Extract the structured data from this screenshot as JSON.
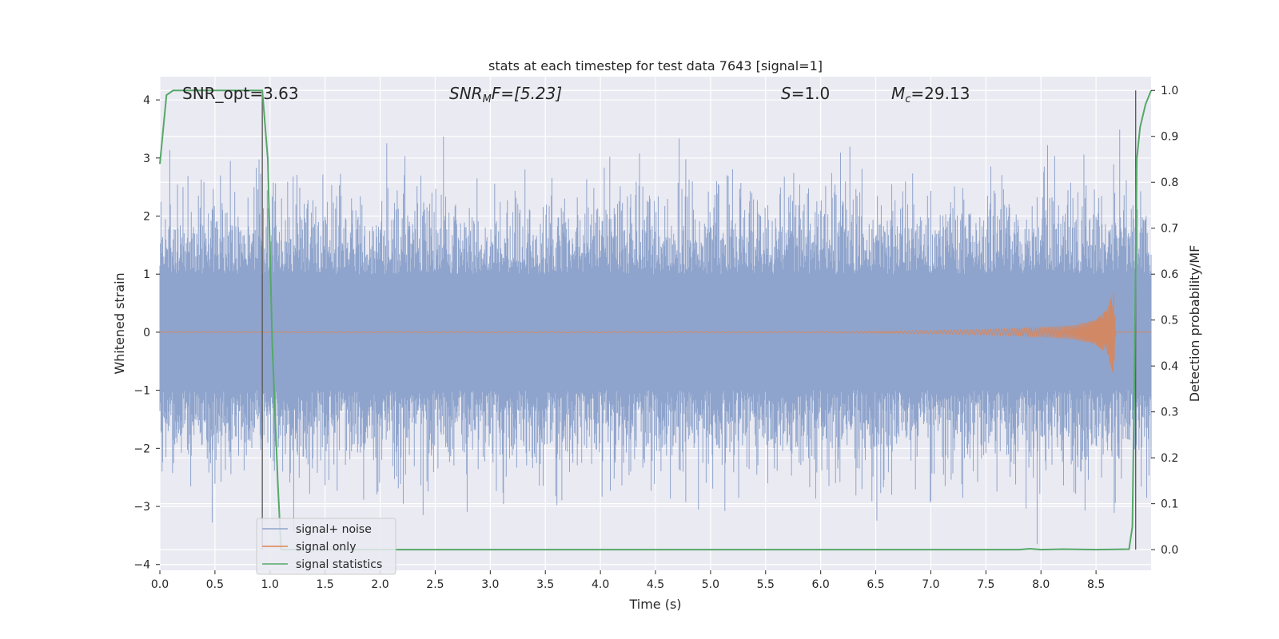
{
  "chart_data": {
    "type": "line",
    "title": "stats at each timestep for test data 7643 [signal=1]",
    "xlabel": "Time (s)",
    "ylabel": "Whitened strain",
    "y2label": "Detection probability/MF",
    "xlim": [
      0.0,
      9.0
    ],
    "ylim": [
      -4.1,
      4.4
    ],
    "y2lim": [
      -0.045,
      1.03
    ],
    "xticks": [
      "0.0",
      "0.5",
      "1.0",
      "1.5",
      "2.0",
      "2.5",
      "3.0",
      "3.5",
      "4.0",
      "4.5",
      "5.0",
      "5.5",
      "6.0",
      "6.5",
      "7.0",
      "7.5",
      "8.0",
      "8.5"
    ],
    "xtick_values": [
      0,
      0.5,
      1,
      1.5,
      2,
      2.5,
      3,
      3.5,
      4,
      4.5,
      5,
      5.5,
      6,
      6.5,
      7,
      7.5,
      8,
      8.5
    ],
    "yticks": [
      "4",
      "3",
      "2",
      "1",
      "0",
      "−1",
      "−2",
      "−3",
      "−4"
    ],
    "ytick_values": [
      4,
      3,
      2,
      1,
      0,
      -1,
      -2,
      -3,
      -4
    ],
    "y2ticks": [
      "1.0",
      "0.9",
      "0.8",
      "0.7",
      "0.6",
      "0.5",
      "0.4",
      "0.3",
      "0.2",
      "0.1",
      "0.0"
    ],
    "y2tick_values": [
      1.0,
      0.9,
      0.8,
      0.7,
      0.6,
      0.5,
      0.4,
      0.3,
      0.2,
      0.1,
      0.0
    ],
    "grid": true,
    "legend_position": "lower-left",
    "annotations": {
      "snr_opt": "SNR_opt=3.63",
      "snr_mf_main": "SNR",
      "snr_mf_sub": "M",
      "snr_mf_rest": "F=[5.23]",
      "s_main": "S",
      "s_rest": "=1.0",
      "mc_main": "M",
      "mc_sub": "c",
      "mc_rest": "=29.13"
    },
    "vertical_markers_x": [
      0.93,
      8.86
    ],
    "series": [
      {
        "name": "signal+ noise",
        "color": "#8fa4cc",
        "description_range": [
          -3.65,
          4.0
        ],
        "x_range": [
          0.0,
          9.0
        ]
      },
      {
        "name": "signal only",
        "color": "#dd8452",
        "chirp_envelope_x": [
          0.0,
          6.0,
          7.0,
          7.5,
          8.0,
          8.3,
          8.5,
          8.6,
          8.66,
          8.68
        ],
        "chirp_envelope_y": [
          0.005,
          0.01,
          0.03,
          0.05,
          0.08,
          0.12,
          0.22,
          0.4,
          0.75,
          0.0
        ]
      },
      {
        "name": "signal statistics",
        "color": "#55a868",
        "axis": "right",
        "x": [
          0.0,
          0.06,
          0.12,
          0.2,
          0.5,
          0.88,
          0.93,
          0.98,
          1.02,
          1.07,
          1.1,
          1.5,
          3.0,
          5.0,
          7.0,
          7.8,
          7.9,
          8.0,
          8.2,
          8.5,
          8.8,
          8.83,
          8.85,
          8.87,
          8.9,
          8.95,
          9.0
        ],
        "y": [
          0.84,
          0.99,
          1.0,
          1.0,
          1.0,
          1.0,
          1.0,
          0.85,
          0.45,
          0.15,
          0.0,
          0.0,
          0.0,
          0.0,
          0.0,
          0.0,
          0.002,
          0.0,
          0.001,
          0.0,
          0.001,
          0.05,
          0.4,
          0.85,
          0.92,
          0.97,
          1.0
        ]
      }
    ],
    "colors": {
      "background": "#eaeaf2",
      "grid": "#ffffff",
      "vline": "#555555"
    }
  }
}
